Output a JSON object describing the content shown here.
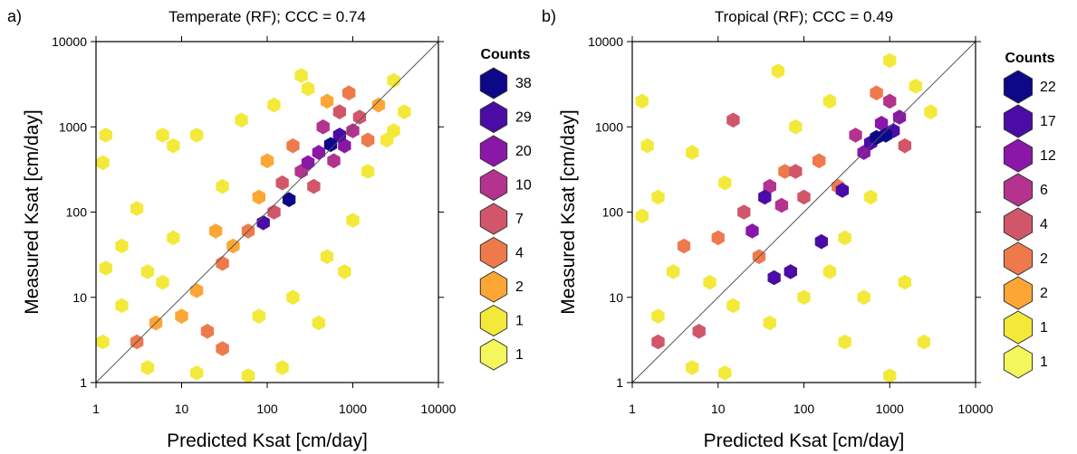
{
  "chart_data": [
    {
      "type": "hexbin",
      "panel_label": "a)",
      "title": "Temperate (RF); CCC = 0.74",
      "xlabel": "Predicted Ksat [cm/day]",
      "ylabel": "Measured Ksat [cm/day]",
      "xscale": "log",
      "yscale": "log",
      "xlim": [
        1,
        10000
      ],
      "ylim": [
        1,
        10000
      ],
      "xticks": [
        "1",
        "10",
        "100",
        "1000",
        "10000"
      ],
      "yticks": [
        "1",
        "10",
        "100",
        "1000",
        "10000"
      ],
      "reference_line": "1:1",
      "legend": {
        "title": "Counts",
        "levels": [
          "38",
          "29",
          "20",
          "10",
          "7",
          "4",
          "2",
          "1",
          "1"
        ],
        "colors": [
          "#0d0887",
          "#4b0ca6",
          "#8a17a8",
          "#b3338e",
          "#d1566a",
          "#ee7a4c",
          "#fca636",
          "#f3e93a",
          "#f4f75b"
        ]
      },
      "points": [
        {
          "x": 550,
          "y": 620,
          "c": 38
        },
        {
          "x": 180,
          "y": 140,
          "c": 38
        },
        {
          "x": 90,
          "y": 75,
          "c": 29
        },
        {
          "x": 700,
          "y": 800,
          "c": 29
        },
        {
          "x": 400,
          "y": 500,
          "c": 20
        },
        {
          "x": 300,
          "y": 380,
          "c": 20
        },
        {
          "x": 800,
          "y": 600,
          "c": 20
        },
        {
          "x": 600,
          "y": 400,
          "c": 10
        },
        {
          "x": 250,
          "y": 300,
          "c": 10
        },
        {
          "x": 1000,
          "y": 900,
          "c": 10
        },
        {
          "x": 450,
          "y": 1000,
          "c": 10
        },
        {
          "x": 150,
          "y": 220,
          "c": 7
        },
        {
          "x": 350,
          "y": 200,
          "c": 7
        },
        {
          "x": 1200,
          "y": 1300,
          "c": 7
        },
        {
          "x": 700,
          "y": 1500,
          "c": 7
        },
        {
          "x": 120,
          "y": 100,
          "c": 7
        },
        {
          "x": 60,
          "y": 60,
          "c": 4
        },
        {
          "x": 200,
          "y": 600,
          "c": 4
        },
        {
          "x": 900,
          "y": 2500,
          "c": 4
        },
        {
          "x": 1500,
          "y": 700,
          "c": 4
        },
        {
          "x": 30,
          "y": 25,
          "c": 4
        },
        {
          "x": 20,
          "y": 4,
          "c": 4
        },
        {
          "x": 30,
          "y": 2.5,
          "c": 4
        },
        {
          "x": 3,
          "y": 3,
          "c": 4
        },
        {
          "x": 40,
          "y": 40,
          "c": 2
        },
        {
          "x": 80,
          "y": 150,
          "c": 2
        },
        {
          "x": 10,
          "y": 6,
          "c": 2
        },
        {
          "x": 15,
          "y": 12,
          "c": 2
        },
        {
          "x": 500,
          "y": 2000,
          "c": 2
        },
        {
          "x": 2000,
          "y": 1800,
          "c": 2
        },
        {
          "x": 100,
          "y": 400,
          "c": 2
        },
        {
          "x": 25,
          "y": 60,
          "c": 2
        },
        {
          "x": 5,
          "y": 5,
          "c": 2
        },
        {
          "x": 6,
          "y": 15,
          "c": 1
        },
        {
          "x": 1.3,
          "y": 800,
          "c": 1
        },
        {
          "x": 1.2,
          "y": 380,
          "c": 1
        },
        {
          "x": 3,
          "y": 110,
          "c": 1
        },
        {
          "x": 8,
          "y": 600,
          "c": 1
        },
        {
          "x": 15,
          "y": 800,
          "c": 1
        },
        {
          "x": 50,
          "y": 1200,
          "c": 1
        },
        {
          "x": 120,
          "y": 1800,
          "c": 1
        },
        {
          "x": 300,
          "y": 2800,
          "c": 1
        },
        {
          "x": 3000,
          "y": 3500,
          "c": 1
        },
        {
          "x": 4000,
          "y": 1500,
          "c": 1
        },
        {
          "x": 2500,
          "y": 700,
          "c": 1
        },
        {
          "x": 1.2,
          "y": 3,
          "c": 1
        },
        {
          "x": 1.3,
          "y": 22,
          "c": 1
        },
        {
          "x": 2,
          "y": 40,
          "c": 1
        },
        {
          "x": 4,
          "y": 1.5,
          "c": 1
        },
        {
          "x": 15,
          "y": 1.3,
          "c": 1
        },
        {
          "x": 60,
          "y": 1.2,
          "c": 1
        },
        {
          "x": 150,
          "y": 1.5,
          "c": 1
        },
        {
          "x": 400,
          "y": 5,
          "c": 1
        },
        {
          "x": 800,
          "y": 20,
          "c": 1
        },
        {
          "x": 1000,
          "y": 80,
          "c": 1
        },
        {
          "x": 500,
          "y": 30,
          "c": 1
        },
        {
          "x": 200,
          "y": 10,
          "c": 1
        },
        {
          "x": 80,
          "y": 6,
          "c": 1
        },
        {
          "x": 30,
          "y": 200,
          "c": 1
        },
        {
          "x": 8,
          "y": 50,
          "c": 1
        },
        {
          "x": 4,
          "y": 20,
          "c": 1
        },
        {
          "x": 2,
          "y": 8,
          "c": 1
        },
        {
          "x": 250,
          "y": 4000,
          "c": 1
        },
        {
          "x": 1500,
          "y": 300,
          "c": 1
        },
        {
          "x": 3000,
          "y": 900,
          "c": 1
        },
        {
          "x": 6,
          "y": 800,
          "c": 1
        }
      ]
    },
    {
      "type": "hexbin",
      "panel_label": "b)",
      "title": "Tropical (RF); CCC = 0.49",
      "xlabel": "Predicted Ksat [cm/day]",
      "ylabel": "Measured Ksat [cm/day]",
      "xscale": "log",
      "yscale": "log",
      "xlim": [
        1,
        10000
      ],
      "ylim": [
        1,
        10000
      ],
      "xticks": [
        "1",
        "10",
        "100",
        "1000",
        "10000"
      ],
      "yticks": [
        "1",
        "10",
        "100",
        "1000",
        "10000"
      ],
      "reference_line": "1:1",
      "legend": {
        "title": "Counts",
        "levels": [
          "22",
          "17",
          "12",
          "6",
          "4",
          "2",
          "2",
          "1",
          "1"
        ],
        "colors": [
          "#0d0887",
          "#4b0ca6",
          "#8a17a8",
          "#b3338e",
          "#d1566a",
          "#ee7a4c",
          "#fca636",
          "#f3e93a",
          "#f4f75b"
        ]
      },
      "points": [
        {
          "x": 900,
          "y": 800,
          "c": 22
        },
        {
          "x": 700,
          "y": 750,
          "c": 22
        },
        {
          "x": 1100,
          "y": 900,
          "c": 17
        },
        {
          "x": 600,
          "y": 650,
          "c": 17
        },
        {
          "x": 35,
          "y": 150,
          "c": 17
        },
        {
          "x": 280,
          "y": 180,
          "c": 17
        },
        {
          "x": 160,
          "y": 45,
          "c": 17
        },
        {
          "x": 70,
          "y": 20,
          "c": 17
        },
        {
          "x": 45,
          "y": 17,
          "c": 17
        },
        {
          "x": 800,
          "y": 1100,
          "c": 12
        },
        {
          "x": 500,
          "y": 500,
          "c": 12
        },
        {
          "x": 1300,
          "y": 1300,
          "c": 12
        },
        {
          "x": 25,
          "y": 60,
          "c": 12
        },
        {
          "x": 55,
          "y": 120,
          "c": 6
        },
        {
          "x": 40,
          "y": 200,
          "c": 6
        },
        {
          "x": 1000,
          "y": 2000,
          "c": 6
        },
        {
          "x": 400,
          "y": 800,
          "c": 6
        },
        {
          "x": 15,
          "y": 1200,
          "c": 4
        },
        {
          "x": 80,
          "y": 300,
          "c": 4
        },
        {
          "x": 20,
          "y": 100,
          "c": 4
        },
        {
          "x": 1500,
          "y": 600,
          "c": 4
        },
        {
          "x": 2,
          "y": 3,
          "c": 4
        },
        {
          "x": 6,
          "y": 4,
          "c": 4
        },
        {
          "x": 100,
          "y": 150,
          "c": 4
        },
        {
          "x": 60,
          "y": 300,
          "c": 2
        },
        {
          "x": 10,
          "y": 50,
          "c": 2
        },
        {
          "x": 150,
          "y": 400,
          "c": 2
        },
        {
          "x": 250,
          "y": 200,
          "c": 2
        },
        {
          "x": 30,
          "y": 30,
          "c": 2
        },
        {
          "x": 4,
          "y": 40,
          "c": 2
        },
        {
          "x": 700,
          "y": 2500,
          "c": 2
        },
        {
          "x": 12,
          "y": 220,
          "c": 1
        },
        {
          "x": 2,
          "y": 150,
          "c": 1
        },
        {
          "x": 1.5,
          "y": 600,
          "c": 1
        },
        {
          "x": 1.3,
          "y": 2000,
          "c": 1
        },
        {
          "x": 50,
          "y": 4500,
          "c": 1
        },
        {
          "x": 1000,
          "y": 6000,
          "c": 1
        },
        {
          "x": 2000,
          "y": 3000,
          "c": 1
        },
        {
          "x": 2500,
          "y": 3,
          "c": 1
        },
        {
          "x": 1000,
          "y": 1.2,
          "c": 1
        },
        {
          "x": 300,
          "y": 3,
          "c": 1
        },
        {
          "x": 500,
          "y": 10,
          "c": 1
        },
        {
          "x": 1500,
          "y": 15,
          "c": 1
        },
        {
          "x": 200,
          "y": 20,
          "c": 1
        },
        {
          "x": 12,
          "y": 1.3,
          "c": 1
        },
        {
          "x": 5,
          "y": 1.5,
          "c": 1
        },
        {
          "x": 2,
          "y": 6,
          "c": 1
        },
        {
          "x": 8,
          "y": 15,
          "c": 1
        },
        {
          "x": 15,
          "y": 8,
          "c": 1
        },
        {
          "x": 3,
          "y": 20,
          "c": 1
        },
        {
          "x": 1.3,
          "y": 90,
          "c": 1
        },
        {
          "x": 100,
          "y": 10,
          "c": 1
        },
        {
          "x": 40,
          "y": 5,
          "c": 1
        },
        {
          "x": 300,
          "y": 50,
          "c": 1
        },
        {
          "x": 600,
          "y": 150,
          "c": 1
        },
        {
          "x": 3000,
          "y": 1500,
          "c": 1
        },
        {
          "x": 5,
          "y": 500,
          "c": 1
        },
        {
          "x": 80,
          "y": 1000,
          "c": 1
        },
        {
          "x": 200,
          "y": 2000,
          "c": 1
        }
      ]
    }
  ]
}
